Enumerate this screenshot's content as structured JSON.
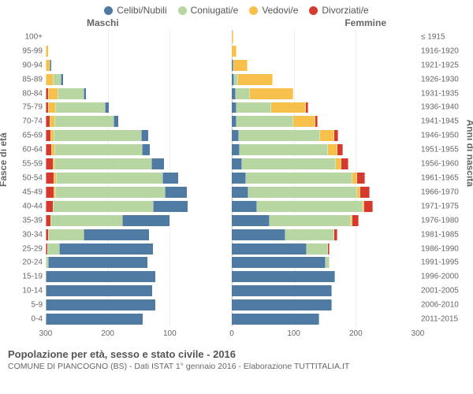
{
  "chart": {
    "type": "population-pyramid",
    "legend": [
      {
        "label": "Celibi/Nubili",
        "color": "#4f7aa2"
      },
      {
        "label": "Coniugati/e",
        "color": "#b8d6a1"
      },
      {
        "label": "Vedovi/e",
        "color": "#f7c04a"
      },
      {
        "label": "Divorziati/e",
        "color": "#d63a2f"
      }
    ],
    "gender_left": "Maschi",
    "gender_right": "Femmine",
    "y_left_title": "Fasce di età",
    "y_right_title": "Anni di nascita",
    "x_max": 300,
    "x_ticks": [
      300,
      200,
      100,
      0,
      100,
      200,
      300
    ],
    "background_color": "#ffffff",
    "grid_color": "#eeeeee",
    "text_color": "#666666",
    "label_fontsize": 10,
    "rows": [
      {
        "age": "100+",
        "year": "≤ 1915",
        "m": [
          0,
          0,
          0,
          0
        ],
        "f": [
          0,
          0,
          1,
          0
        ]
      },
      {
        "age": "95-99",
        "year": "1916-1920",
        "m": [
          0,
          0,
          2,
          0
        ],
        "f": [
          0,
          0,
          6,
          0
        ]
      },
      {
        "age": "90-94",
        "year": "1921-1925",
        "m": [
          1,
          0,
          5,
          0
        ],
        "f": [
          1,
          0,
          22,
          0
        ]
      },
      {
        "age": "85-89",
        "year": "1926-1930",
        "m": [
          2,
          12,
          10,
          0
        ],
        "f": [
          3,
          4,
          55,
          0
        ]
      },
      {
        "age": "80-84",
        "year": "1931-1935",
        "m": [
          3,
          40,
          15,
          2
        ],
        "f": [
          5,
          22,
          68,
          0
        ]
      },
      {
        "age": "75-79",
        "year": "1936-1940",
        "m": [
          5,
          78,
          10,
          3
        ],
        "f": [
          6,
          55,
          55,
          2
        ]
      },
      {
        "age": "70-74",
        "year": "1941-1945",
        "m": [
          6,
          95,
          6,
          5
        ],
        "f": [
          6,
          90,
          35,
          3
        ]
      },
      {
        "age": "65-69",
        "year": "1946-1950",
        "m": [
          10,
          140,
          4,
          6
        ],
        "f": [
          10,
          130,
          22,
          5
        ]
      },
      {
        "age": "60-64",
        "year": "1951-1955",
        "m": [
          12,
          140,
          3,
          8
        ],
        "f": [
          12,
          140,
          15,
          7
        ]
      },
      {
        "age": "55-59",
        "year": "1956-1960",
        "m": [
          18,
          155,
          2,
          10
        ],
        "f": [
          15,
          150,
          8,
          10
        ]
      },
      {
        "age": "50-54",
        "year": "1961-1965",
        "m": [
          25,
          170,
          2,
          12
        ],
        "f": [
          22,
          170,
          6,
          12
        ]
      },
      {
        "age": "45-49",
        "year": "1966-1970",
        "m": [
          35,
          175,
          1,
          12
        ],
        "f": [
          25,
          175,
          3,
          14
        ]
      },
      {
        "age": "40-44",
        "year": "1971-1975",
        "m": [
          55,
          160,
          0,
          10
        ],
        "f": [
          40,
          168,
          2,
          12
        ]
      },
      {
        "age": "35-39",
        "year": "1976-1980",
        "m": [
          75,
          115,
          0,
          6
        ],
        "f": [
          60,
          130,
          1,
          8
        ]
      },
      {
        "age": "30-34",
        "year": "1981-1985",
        "m": [
          105,
          55,
          0,
          3
        ],
        "f": [
          85,
          78,
          0,
          4
        ]
      },
      {
        "age": "25-29",
        "year": "1986-1990",
        "m": [
          150,
          18,
          0,
          1
        ],
        "f": [
          120,
          32,
          0,
          2
        ]
      },
      {
        "age": "20-24",
        "year": "1991-1995",
        "m": [
          160,
          2,
          0,
          0
        ],
        "f": [
          150,
          5,
          0,
          0
        ]
      },
      {
        "age": "15-19",
        "year": "1996-2000",
        "m": [
          175,
          0,
          0,
          0
        ],
        "f": [
          165,
          0,
          0,
          0
        ]
      },
      {
        "age": "10-14",
        "year": "2001-2005",
        "m": [
          170,
          0,
          0,
          0
        ],
        "f": [
          160,
          0,
          0,
          0
        ]
      },
      {
        "age": "5-9",
        "year": "2006-2010",
        "m": [
          175,
          0,
          0,
          0
        ],
        "f": [
          160,
          0,
          0,
          0
        ]
      },
      {
        "age": "0-4",
        "year": "2011-2015",
        "m": [
          155,
          0,
          0,
          0
        ],
        "f": [
          140,
          0,
          0,
          0
        ]
      }
    ]
  },
  "footer": {
    "title": "Popolazione per età, sesso e stato civile - 2016",
    "subtitle": "COMUNE DI PIANCOGNO (BS) - Dati ISTAT 1° gennaio 2016 - Elaborazione TUTTITALIA.IT"
  }
}
